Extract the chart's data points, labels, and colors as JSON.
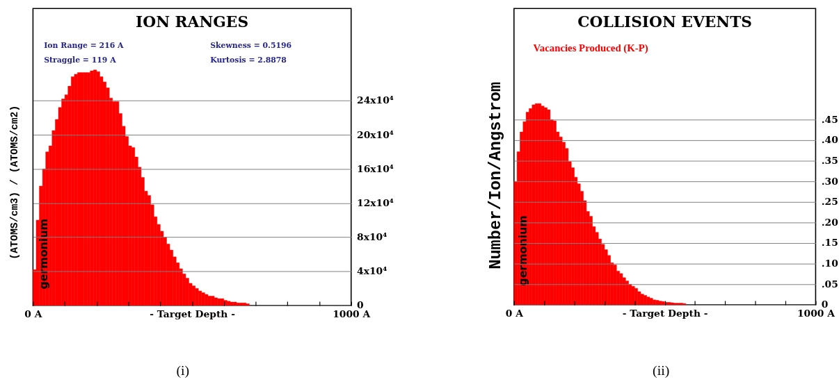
{
  "chart_data": [
    {
      "type": "histogram",
      "title": "ION RANGES",
      "xlabel": "- Target Depth -",
      "ylabel": "(ATOMS/cm3) / (ATOMS/cm2)",
      "annotations": [
        "Ion Range = 216 A",
        "Straggle = 119 A",
        "Skewness = 0.5196",
        "Kurtosis = 2.8878",
        "germonium",
        "(i)"
      ],
      "bins": [
        0,
        10,
        20,
        30,
        40,
        50,
        60,
        70,
        80,
        90,
        100,
        110,
        120,
        130,
        140,
        150,
        160,
        170,
        180,
        190,
        200,
        210,
        220,
        230,
        240,
        250,
        260,
        270,
        280,
        290,
        300,
        310,
        320,
        330,
        340,
        350,
        360,
        370,
        380,
        390,
        400,
        410,
        420,
        430,
        440,
        450,
        460,
        470,
        480,
        490,
        500,
        510,
        520,
        530,
        540,
        550,
        560,
        570,
        580,
        590,
        600,
        610,
        620,
        630,
        640,
        650,
        660,
        670,
        680
      ],
      "values": [
        42000,
        100000,
        140000,
        160000,
        180000,
        187000,
        205000,
        218000,
        232000,
        242000,
        247000,
        257000,
        268000,
        271000,
        273000,
        273000,
        273000,
        273000,
        275000,
        276000,
        274000,
        268000,
        262000,
        255000,
        243000,
        239000,
        239000,
        225000,
        210000,
        198000,
        187000,
        185000,
        174000,
        162000,
        150000,
        134000,
        129000,
        118000,
        104000,
        95000,
        87000,
        80000,
        72000,
        65000,
        57000,
        50000,
        43000,
        37000,
        32000,
        26000,
        23000,
        20000,
        17000,
        15000,
        13000,
        11000,
        11000,
        9000,
        8000,
        8000,
        6000,
        5000,
        4000,
        4000,
        3000,
        3000,
        3000,
        2000
      ],
      "color": "#ff0000",
      "xlim": [
        0,
        1000
      ],
      "xticks": [
        {
          "value": 0,
          "label": "0 A"
        },
        {
          "value": 100,
          "label": null
        },
        {
          "value": 200,
          "label": null
        },
        {
          "value": 300,
          "label": null
        },
        {
          "value": 400,
          "label": null
        },
        {
          "value": 500,
          "label": null
        },
        {
          "value": 600,
          "label": null
        },
        {
          "value": 700,
          "label": null
        },
        {
          "value": 800,
          "label": null
        },
        {
          "value": 900,
          "label": null
        },
        {
          "value": 1000,
          "label": "1000 A"
        }
      ],
      "ylim": [
        0,
        348000
      ],
      "yticks": [
        0,
        {
          "value": 40000,
          "label": "4x10⁴"
        },
        {
          "value": 80000,
          "label": "8x10⁴"
        },
        {
          "value": 120000,
          "label": "12x10⁴"
        },
        {
          "value": 160000,
          "label": "16x10⁴"
        },
        {
          "value": 200000,
          "label": "20x10⁴"
        },
        {
          "value": 240000,
          "label": "24x10⁴"
        }
      ],
      "grid": "y"
    },
    {
      "type": "histogram",
      "title": "COLLISION EVENTS",
      "xlabel": "- Target Depth -",
      "ylabel": "Number/Ion/Angstrom",
      "annotations": [
        "germonium",
        "(ii)"
      ],
      "bins": [
        0,
        10,
        20,
        30,
        40,
        50,
        60,
        70,
        80,
        90,
        100,
        110,
        120,
        130,
        140,
        150,
        160,
        170,
        180,
        190,
        200,
        210,
        220,
        230,
        240,
        250,
        260,
        270,
        280,
        290,
        300,
        310,
        320,
        330,
        340,
        350,
        360,
        370,
        380,
        390,
        400,
        410,
        420,
        430,
        440,
        450,
        460,
        470,
        480,
        490,
        500,
        510,
        520,
        530,
        540,
        550,
        560,
        570
      ],
      "series": [
        {
          "name": "Vacancies Produced (K-P)",
          "color": "#ff0000",
          "values": [
            0.3,
            0.372,
            0.42,
            0.445,
            0.468,
            0.477,
            0.486,
            0.489,
            0.489,
            0.483,
            0.479,
            0.474,
            0.45,
            0.447,
            0.42,
            0.408,
            0.395,
            0.38,
            0.348,
            0.333,
            0.31,
            0.294,
            0.276,
            0.253,
            0.227,
            0.215,
            0.19,
            0.176,
            0.16,
            0.147,
            0.134,
            0.12,
            0.102,
            0.097,
            0.082,
            0.076,
            0.066,
            0.058,
            0.05,
            0.045,
            0.04,
            0.032,
            0.026,
            0.023,
            0.019,
            0.016,
            0.012,
            0.011,
            0.009,
            0.008,
            0.006,
            0.006,
            0.005,
            0.004,
            0.004,
            0.004,
            0.003
          ]
        }
      ],
      "xlim": [
        0,
        1000
      ],
      "xticks": [
        {
          "value": 0,
          "label": "0 A"
        },
        {
          "value": 100,
          "label": null
        },
        {
          "value": 200,
          "label": null
        },
        {
          "value": 300,
          "label": null
        },
        {
          "value": 400,
          "label": null
        },
        {
          "value": 500,
          "label": null
        },
        {
          "value": 600,
          "label": null
        },
        {
          "value": 700,
          "label": null
        },
        {
          "value": 800,
          "label": null
        },
        {
          "value": 900,
          "label": null
        },
        {
          "value": 1000,
          "label": "1000 A"
        }
      ],
      "ylim": [
        0,
        0.72
      ],
      "yticks": [
        0,
        {
          "value": 0.05,
          "label": ".05"
        },
        {
          "value": 0.1,
          "label": ".10"
        },
        {
          "value": 0.15,
          "label": ".15"
        },
        {
          "value": 0.2,
          "label": ".20"
        },
        {
          "value": 0.25,
          "label": ".25"
        },
        {
          "value": 0.3,
          "label": ".30"
        },
        {
          "value": 0.35,
          "label": ".35"
        },
        {
          "value": 0.4,
          "label": ".40"
        },
        {
          "value": 0.45,
          "label": ".45"
        }
      ],
      "grid": "y"
    }
  ]
}
